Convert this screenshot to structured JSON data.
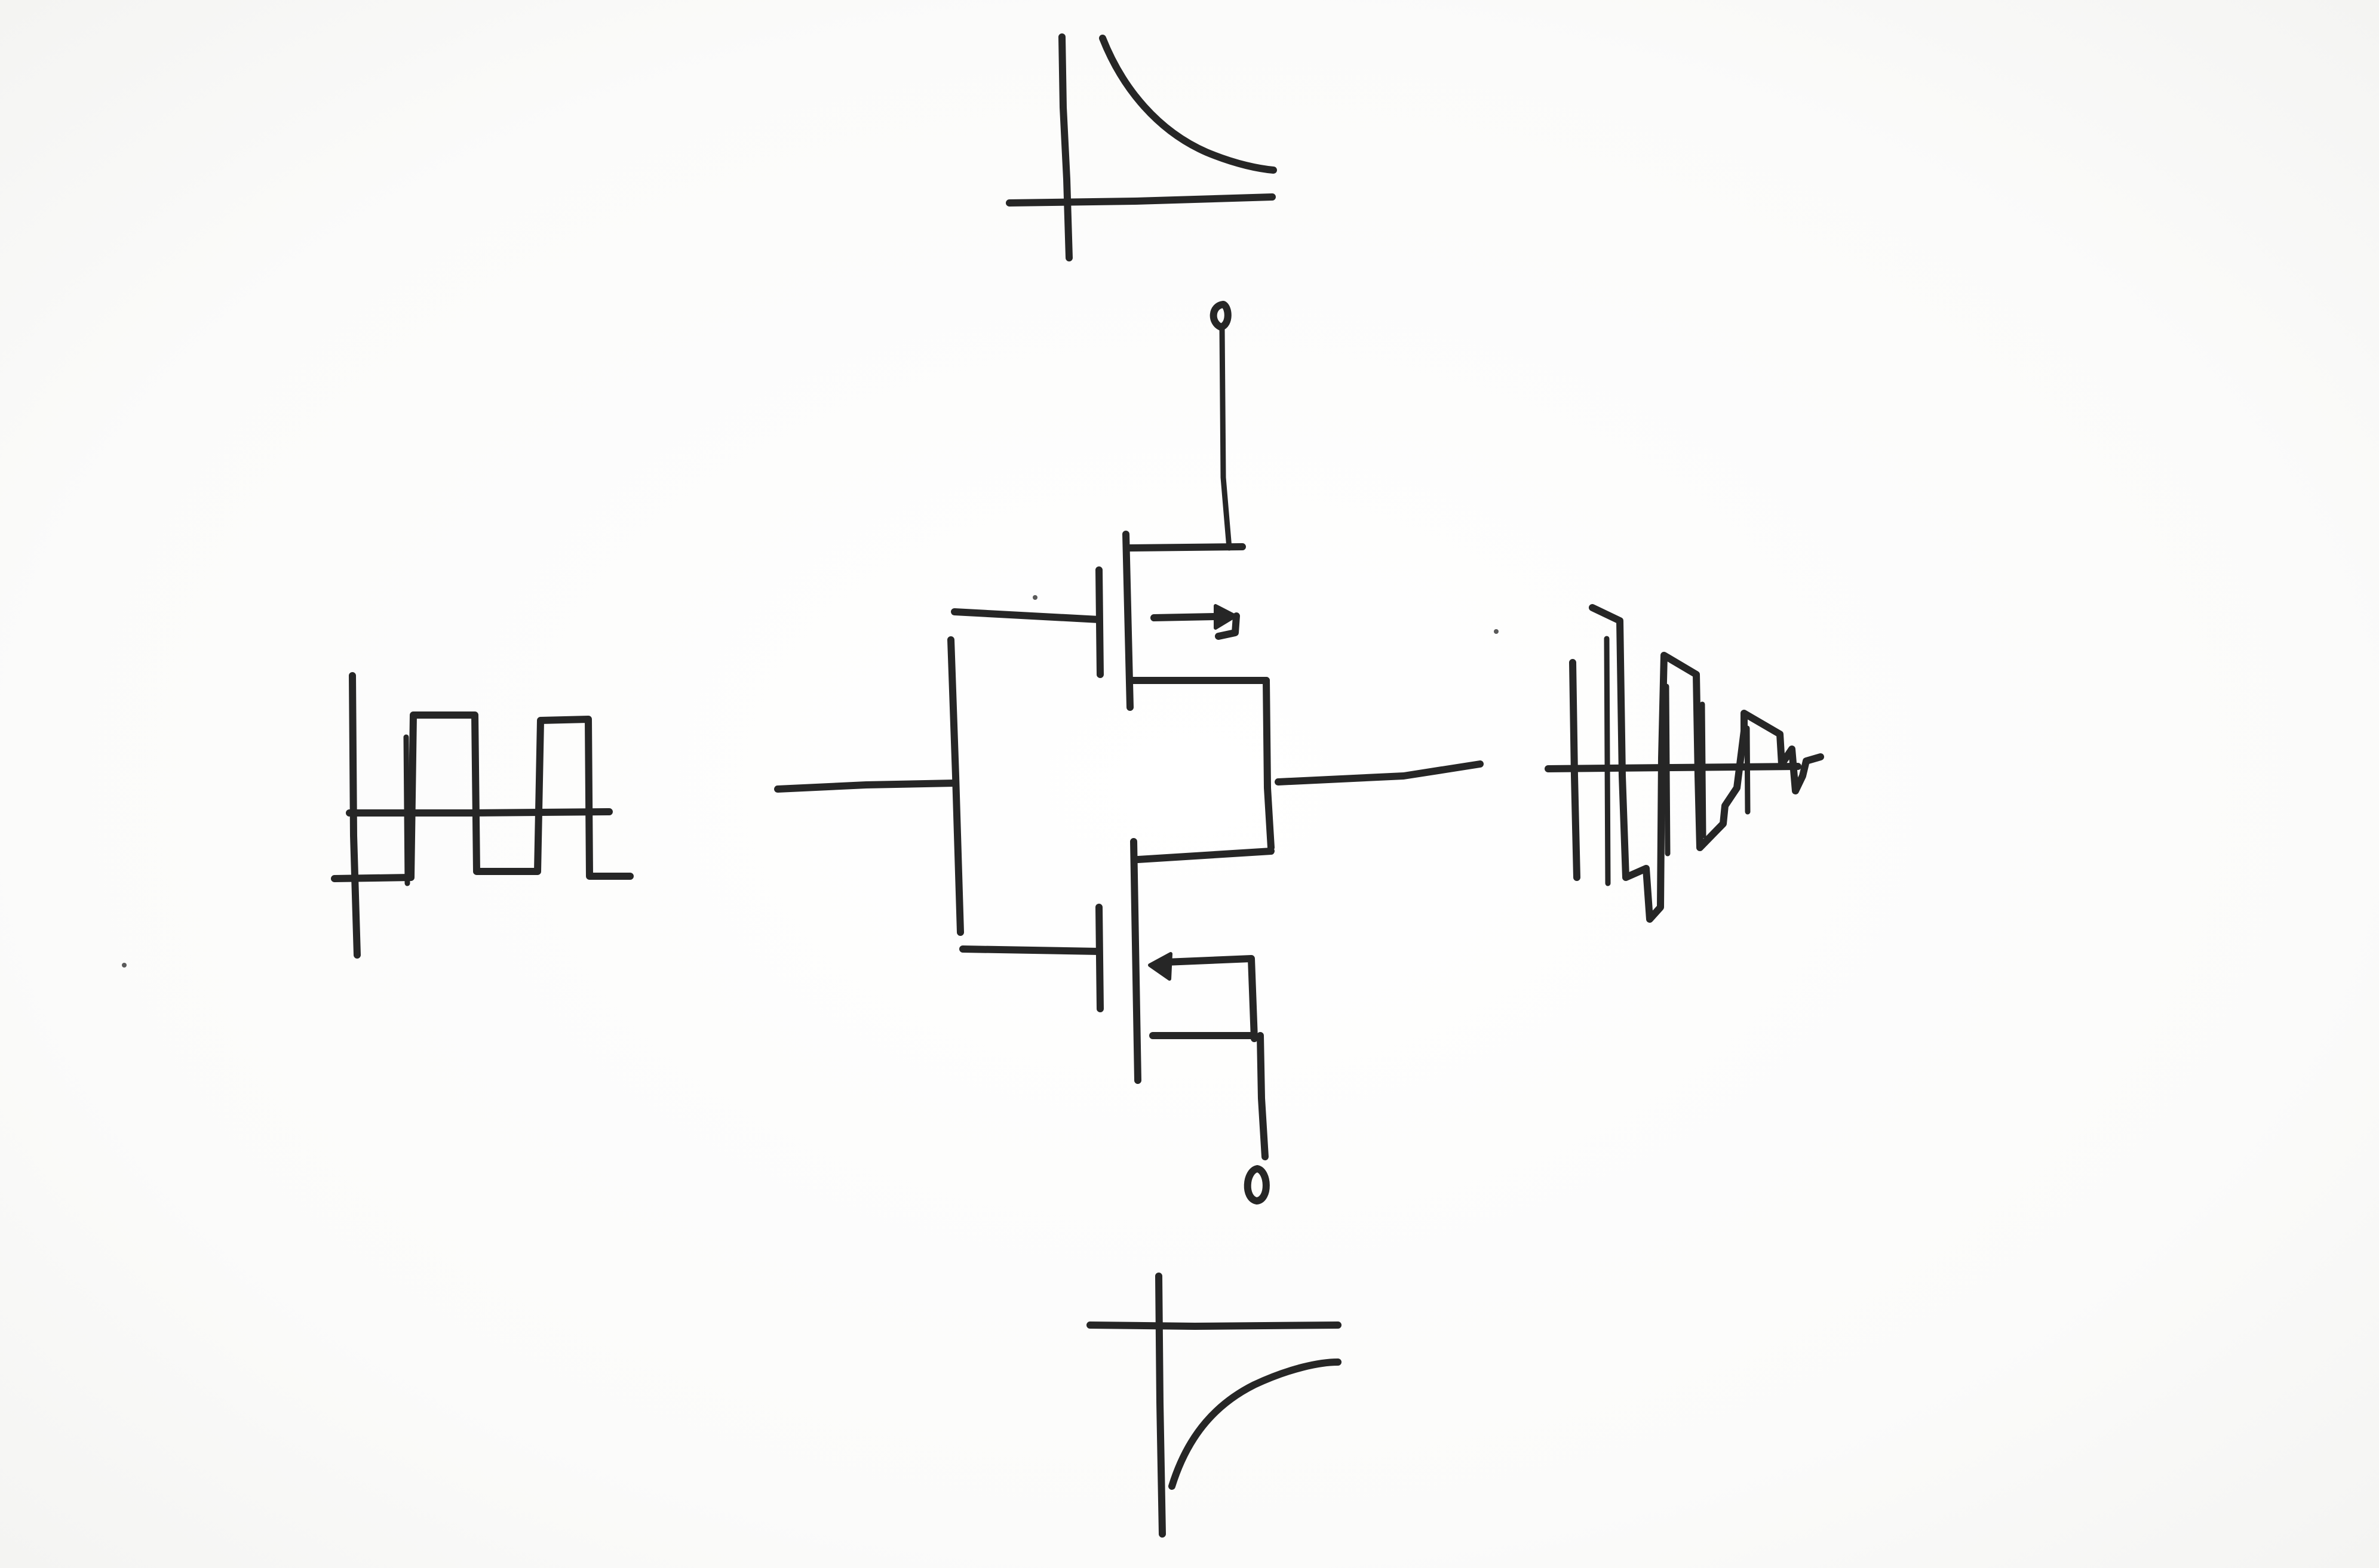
{
  "diagram": {
    "kind": "hand-drawn CMOS inverter sketch with waveforms",
    "ink_color": "#262626",
    "paper_color": "#fdfdfc",
    "components": [
      "pmos-transistor",
      "nmos-transistor",
      "input-wire",
      "output-wire",
      "vdd-terminal",
      "gnd-terminal"
    ],
    "waveforms": [
      {
        "position": "left",
        "shape": "square-wave"
      },
      {
        "position": "top",
        "shape": "decaying-curve"
      },
      {
        "position": "bottom",
        "shape": "rising-curve"
      },
      {
        "position": "right",
        "shape": "decaying-oscillation"
      }
    ]
  }
}
